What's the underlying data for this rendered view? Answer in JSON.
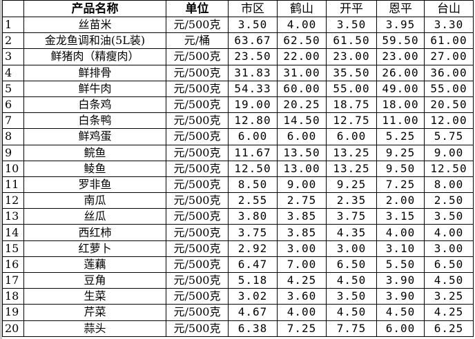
{
  "headers": [
    "",
    "产品名称",
    "单位",
    "市区",
    "鹤山",
    "开平",
    "恩平",
    "台山"
  ],
  "rows": [
    [
      "1",
      "丝苗米",
      "元/500克",
      "3.50",
      "4.00",
      "3.50",
      "3.95",
      "3.30"
    ],
    [
      "2",
      "金龙鱼调和油(5L装)",
      "元/桶",
      "63.67",
      "62.50",
      "61.50",
      "59.50",
      "61.00"
    ],
    [
      "3",
      "鲜猪肉（精瘦肉）",
      "元/500克",
      "23.50",
      "22.00",
      "23.00",
      "23.00",
      "27.00"
    ],
    [
      "4",
      "鲜排骨",
      "元/500克",
      "31.83",
      "31.00",
      "35.50",
      "26.00",
      "36.00"
    ],
    [
      "5",
      "鲜牛肉",
      "元/500克",
      "54.33",
      "60.00",
      "55.00",
      "49.00",
      "55.00"
    ],
    [
      "6",
      "白条鸡",
      "元/500克",
      "19.00",
      "20.25",
      "18.75",
      "18.00",
      "20.50"
    ],
    [
      "7",
      "白条鸭",
      "元/500克",
      "12.80",
      "14.50",
      "12.75",
      "11.00",
      "12.00"
    ],
    [
      "8",
      "鲜鸡蛋",
      "元/500克",
      "6.00",
      "6.00",
      "6.00",
      "5.25",
      "5.75"
    ],
    [
      "9",
      "鲩鱼",
      "元/500克",
      "11.67",
      "13.50",
      "13.25",
      "9.25",
      "9.00"
    ],
    [
      "10",
      "鲮鱼",
      "元/500克",
      "12.50",
      "13.00",
      "13.25",
      "9.50",
      "12.50"
    ],
    [
      "11",
      "罗非鱼",
      "元/500克",
      "8.50",
      "9.00",
      "9.25",
      "7.25",
      "8.00"
    ],
    [
      "12",
      "南瓜",
      "元/500克",
      "2.55",
      "2.75",
      "2.35",
      "2.00",
      "2.50"
    ],
    [
      "13",
      "丝瓜",
      "元/500克",
      "3.80",
      "3.85",
      "3.75",
      "3.15",
      "3.50"
    ],
    [
      "14",
      "西红柿",
      "元/500克",
      "3.75",
      "3.85",
      "4.35",
      "4.00",
      "4.00"
    ],
    [
      "15",
      "红萝卜",
      "元/500克",
      "2.92",
      "3.00",
      "3.00",
      "3.10",
      "3.00"
    ],
    [
      "16",
      "莲藕",
      "元/500克",
      "6.47",
      "7.00",
      "6.50",
      "5.50",
      "6.50"
    ],
    [
      "17",
      "豆角",
      "元/500克",
      "5.18",
      "4.25",
      "4.50",
      "3.90",
      "4.50"
    ],
    [
      "18",
      "生菜",
      "元/500克",
      "3.02",
      "3.60",
      "3.50",
      "3.90",
      "3.25"
    ],
    [
      "19",
      "芹菜",
      "元/500克",
      "4.67",
      "4.00",
      "4.50",
      "4.50",
      "4.25"
    ],
    [
      "20",
      "蒜头",
      "元/500克",
      "6.38",
      "7.25",
      "7.75",
      "6.00",
      "6.25"
    ]
  ]
}
